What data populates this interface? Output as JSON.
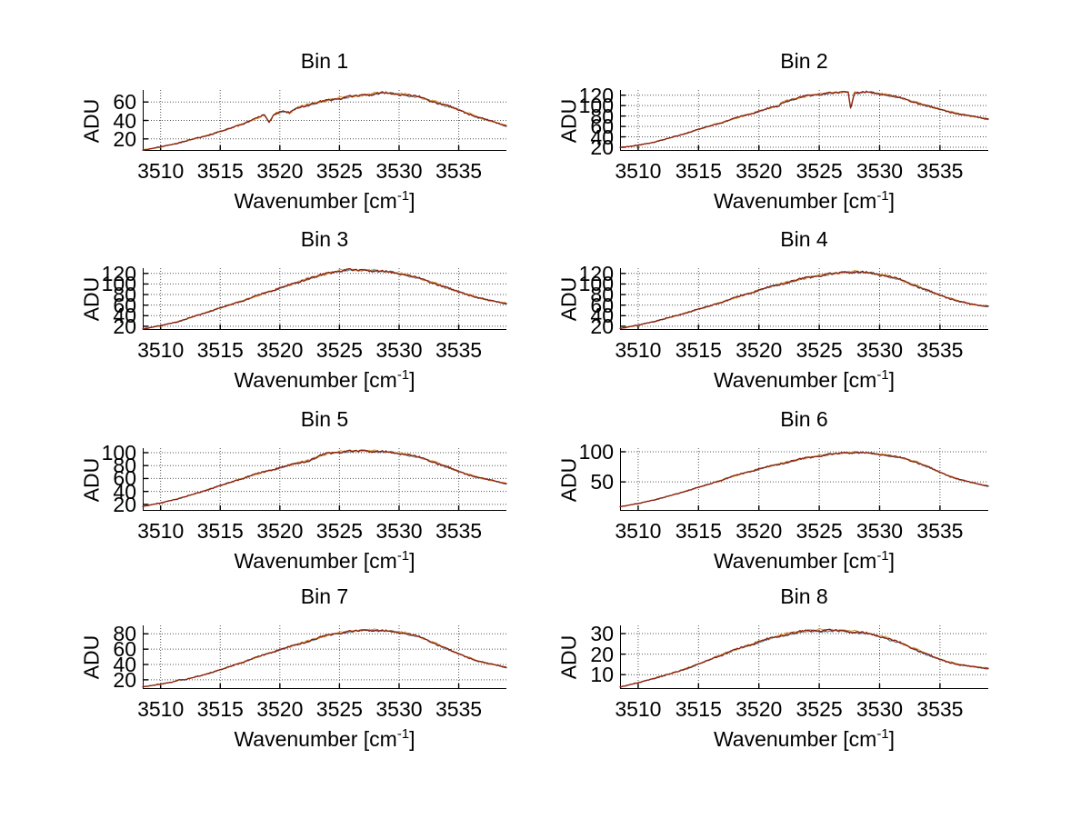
{
  "figure": {
    "background": "#ffffff"
  },
  "chart_data": {
    "type": "line",
    "layout": "4x2 grid of subplots",
    "ylabel": "ADU",
    "xlabel": {
      "text": "Wavenumber [cm",
      "sup": "-1",
      "end": "]"
    },
    "x_ticks": [
      3510,
      3515,
      3520,
      3525,
      3530,
      3535
    ],
    "x_range": [
      3508.5,
      3539
    ],
    "grid": "dotted",
    "legend": "none",
    "line_colors": {
      "primary": "#8b1e14",
      "secondary": "#d9a13c",
      "tertiary": "#4f7f8f"
    },
    "grid_color": "#555555",
    "axis_color": "#000000",
    "subplots": [
      {
        "title": "Bin 1",
        "y_ticks": [
          20,
          40,
          60
        ],
        "y_range": [
          7,
          73
        ],
        "noise": 1.1,
        "points": [
          [
            3508.5,
            8
          ],
          [
            3509.5,
            10
          ],
          [
            3511,
            14
          ],
          [
            3512.5,
            19
          ],
          [
            3514,
            24
          ],
          [
            3515.5,
            30
          ],
          [
            3517,
            37
          ],
          [
            3518,
            42
          ],
          [
            3518.7,
            46
          ],
          [
            3519.1,
            38
          ],
          [
            3519.5,
            47
          ],
          [
            3520.3,
            50
          ],
          [
            3520.8,
            48
          ],
          [
            3521.5,
            54
          ],
          [
            3523,
            59
          ],
          [
            3524.5,
            63
          ],
          [
            3526,
            66
          ],
          [
            3527.5,
            68
          ],
          [
            3528.5,
            70
          ],
          [
            3529.5,
            69
          ],
          [
            3530.5,
            68
          ],
          [
            3531.5,
            66
          ],
          [
            3532.5,
            62
          ],
          [
            3533.5,
            58
          ],
          [
            3534.5,
            54
          ],
          [
            3535.5,
            49
          ],
          [
            3536.5,
            44
          ],
          [
            3537.5,
            40
          ],
          [
            3538.5,
            36
          ],
          [
            3539,
            34
          ]
        ]
      },
      {
        "title": "Bin 2",
        "y_ticks": [
          20,
          40,
          60,
          80,
          100,
          120
        ],
        "y_range": [
          13,
          130
        ],
        "noise": 1.6,
        "points": [
          [
            3508.5,
            20
          ],
          [
            3509.5,
            22
          ],
          [
            3511,
            28
          ],
          [
            3512.5,
            37
          ],
          [
            3514,
            47
          ],
          [
            3515.5,
            58
          ],
          [
            3517,
            68
          ],
          [
            3518.5,
            79
          ],
          [
            3520,
            89
          ],
          [
            3521,
            96
          ],
          [
            3521.6,
            99
          ],
          [
            3522,
            107
          ],
          [
            3523,
            113
          ],
          [
            3524,
            119
          ],
          [
            3525,
            122
          ],
          [
            3526,
            124
          ],
          [
            3527,
            126
          ],
          [
            3527.4,
            126
          ],
          [
            3527.6,
            96
          ],
          [
            3527.9,
            124
          ],
          [
            3529,
            126
          ],
          [
            3530,
            123
          ],
          [
            3531,
            119
          ],
          [
            3532,
            113
          ],
          [
            3533,
            106
          ],
          [
            3534,
            99
          ],
          [
            3535,
            93
          ],
          [
            3536,
            87
          ],
          [
            3537,
            82
          ],
          [
            3538,
            78
          ],
          [
            3539,
            74
          ]
        ]
      },
      {
        "title": "Bin 3",
        "y_ticks": [
          20,
          40,
          60,
          80,
          100,
          120
        ],
        "y_range": [
          13,
          130
        ],
        "noise": 1.8,
        "points": [
          [
            3508.5,
            15
          ],
          [
            3510,
            21
          ],
          [
            3511.5,
            29
          ],
          [
            3513,
            40
          ],
          [
            3514.5,
            51
          ],
          [
            3516,
            62
          ],
          [
            3517.5,
            73
          ],
          [
            3519,
            85
          ],
          [
            3520.5,
            96
          ],
          [
            3521.5,
            103
          ],
          [
            3522.3,
            110
          ],
          [
            3523,
            114
          ],
          [
            3524,
            120
          ],
          [
            3525,
            125
          ],
          [
            3525.8,
            127
          ],
          [
            3526.5,
            126
          ],
          [
            3527.5,
            126
          ],
          [
            3528.5,
            124
          ],
          [
            3529.5,
            122
          ],
          [
            3530.5,
            118
          ],
          [
            3531.5,
            112
          ],
          [
            3532.5,
            105
          ],
          [
            3533.5,
            97
          ],
          [
            3534.5,
            89
          ],
          [
            3535.5,
            82
          ],
          [
            3536.5,
            75
          ],
          [
            3537.5,
            69
          ],
          [
            3538.5,
            65
          ],
          [
            3539,
            63
          ]
        ]
      },
      {
        "title": "Bin 4",
        "y_ticks": [
          20,
          40,
          60,
          80,
          100,
          120
        ],
        "y_range": [
          13,
          130
        ],
        "noise": 1.8,
        "points": [
          [
            3508.5,
            16
          ],
          [
            3510,
            22
          ],
          [
            3511.5,
            30
          ],
          [
            3513,
            39
          ],
          [
            3514.5,
            49
          ],
          [
            3516,
            59
          ],
          [
            3517.5,
            70
          ],
          [
            3519,
            81
          ],
          [
            3520.5,
            92
          ],
          [
            3522,
            101
          ],
          [
            3523,
            107
          ],
          [
            3524,
            112
          ],
          [
            3525,
            116
          ],
          [
            3526,
            119
          ],
          [
            3527,
            122
          ],
          [
            3528,
            123
          ],
          [
            3528.7,
            122
          ],
          [
            3529.5,
            120
          ],
          [
            3530.5,
            116
          ],
          [
            3531.5,
            110
          ],
          [
            3532.5,
            101
          ],
          [
            3533.5,
            92
          ],
          [
            3534.5,
            83
          ],
          [
            3535.5,
            75
          ],
          [
            3536.5,
            68
          ],
          [
            3537.5,
            62
          ],
          [
            3538.3,
            59
          ],
          [
            3539,
            58
          ]
        ]
      },
      {
        "title": "Bin 5",
        "y_ticks": [
          20,
          40,
          60,
          80,
          100
        ],
        "y_range": [
          10,
          107
        ],
        "noise": 1.4,
        "points": [
          [
            3508.5,
            17
          ],
          [
            3510,
            22
          ],
          [
            3511.5,
            29
          ],
          [
            3513,
            37
          ],
          [
            3514.5,
            46
          ],
          [
            3516,
            55
          ],
          [
            3517.5,
            64
          ],
          [
            3519,
            72
          ],
          [
            3520.5,
            79
          ],
          [
            3521.5,
            84
          ],
          [
            3522.5,
            88
          ],
          [
            3523.2,
            94
          ],
          [
            3524,
            99
          ],
          [
            3525,
            101
          ],
          [
            3526,
            102
          ],
          [
            3527,
            103
          ],
          [
            3528,
            102
          ],
          [
            3529,
            101
          ],
          [
            3530,
            99
          ],
          [
            3531,
            96
          ],
          [
            3532,
            91
          ],
          [
            3533,
            85
          ],
          [
            3534,
            78
          ],
          [
            3535,
            71
          ],
          [
            3536,
            65
          ],
          [
            3537,
            60
          ],
          [
            3538,
            56
          ],
          [
            3539,
            52
          ]
        ]
      },
      {
        "title": "Bin 6",
        "y_ticks": [
          50,
          100
        ],
        "y_range": [
          2,
          106
        ],
        "noise": 1.2,
        "points": [
          [
            3508.5,
            9
          ],
          [
            3510,
            14
          ],
          [
            3511.5,
            21
          ],
          [
            3513,
            29
          ],
          [
            3514.5,
            38
          ],
          [
            3516,
            47
          ],
          [
            3517.5,
            57
          ],
          [
            3519,
            66
          ],
          [
            3520.5,
            74
          ],
          [
            3522,
            81
          ],
          [
            3523,
            86
          ],
          [
            3524,
            90
          ],
          [
            3525,
            93
          ],
          [
            3526,
            96
          ],
          [
            3527,
            98
          ],
          [
            3528,
            99
          ],
          [
            3529,
            98
          ],
          [
            3530,
            96
          ],
          [
            3531,
            93
          ],
          [
            3532,
            89
          ],
          [
            3533,
            83
          ],
          [
            3534,
            75
          ],
          [
            3535,
            66
          ],
          [
            3536,
            58
          ],
          [
            3537,
            52
          ],
          [
            3538,
            47
          ],
          [
            3539,
            43
          ]
        ]
      },
      {
        "title": "Bin 7",
        "y_ticks": [
          20,
          40,
          60,
          80
        ],
        "y_range": [
          8,
          91
        ],
        "noise": 1.1,
        "points": [
          [
            3508.5,
            11
          ],
          [
            3509.5,
            13
          ],
          [
            3511,
            17
          ],
          [
            3511.5,
            20
          ],
          [
            3512,
            20
          ],
          [
            3513.5,
            26
          ],
          [
            3515,
            33
          ],
          [
            3516.5,
            41
          ],
          [
            3518,
            49
          ],
          [
            3519.5,
            57
          ],
          [
            3521,
            64
          ],
          [
            3522.5,
            71
          ],
          [
            3523.5,
            76
          ],
          [
            3524.5,
            80
          ],
          [
            3525.5,
            82
          ],
          [
            3526.5,
            84
          ],
          [
            3527.5,
            85
          ],
          [
            3528.5,
            84
          ],
          [
            3529.5,
            83
          ],
          [
            3530.5,
            81
          ],
          [
            3531.5,
            77
          ],
          [
            3532.5,
            71
          ],
          [
            3533.5,
            64
          ],
          [
            3534.5,
            57
          ],
          [
            3535.5,
            51
          ],
          [
            3536.5,
            45
          ],
          [
            3537.5,
            41
          ],
          [
            3538.5,
            38
          ],
          [
            3539,
            36
          ]
        ]
      },
      {
        "title": "Bin 8",
        "y_ticks": [
          10,
          20,
          30
        ],
        "y_range": [
          3,
          34
        ],
        "noise": 0.45,
        "points": [
          [
            3508.5,
            4
          ],
          [
            3510,
            6
          ],
          [
            3511.5,
            8.5
          ],
          [
            3513,
            11
          ],
          [
            3514.5,
            14
          ],
          [
            3516,
            17.5
          ],
          [
            3517.5,
            21
          ],
          [
            3519,
            24
          ],
          [
            3520.5,
            27
          ],
          [
            3521.5,
            28.5
          ],
          [
            3522.5,
            30
          ],
          [
            3523.5,
            31
          ],
          [
            3524.5,
            31.5
          ],
          [
            3525.5,
            31.5
          ],
          [
            3526.5,
            31.5
          ],
          [
            3527.5,
            31
          ],
          [
            3528.5,
            30.5
          ],
          [
            3529.5,
            29.5
          ],
          [
            3530.5,
            28
          ],
          [
            3531.5,
            26
          ],
          [
            3532.5,
            23.5
          ],
          [
            3533.5,
            21
          ],
          [
            3534.5,
            18.5
          ],
          [
            3535.5,
            16.5
          ],
          [
            3536.5,
            15
          ],
          [
            3537.5,
            14
          ],
          [
            3538.5,
            13.3
          ],
          [
            3539,
            13
          ]
        ]
      }
    ]
  }
}
